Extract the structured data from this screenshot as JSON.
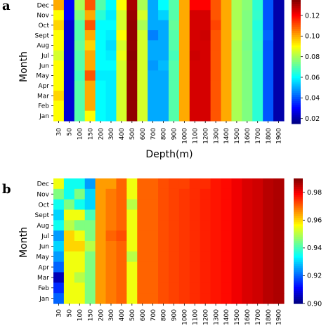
{
  "chart_data": [
    {
      "type": "heatmap",
      "panel_label": "a",
      "ylabel": "Month",
      "xlabel": "Depth(m)",
      "x_categories": [
        "30",
        "50",
        "100",
        "150",
        "200",
        "300",
        "400",
        "500",
        "600",
        "700",
        "800",
        "900",
        "1000",
        "1100",
        "1200",
        "1300",
        "1400",
        "1500",
        "1600",
        "1700",
        "1800",
        "1900"
      ],
      "y_categories": [
        "Dec",
        "Nov",
        "Oct",
        "Sept",
        "Aug",
        "Jul",
        "Jun",
        "May",
        "Apr",
        "Mar",
        "Feb",
        "Jan"
      ],
      "colorscale": "jet",
      "zlim": [
        0.015,
        0.135
      ],
      "colorbar_ticks": [
        "0.12",
        "0.10",
        "0.08",
        "0.06",
        "0.04",
        "0.02"
      ],
      "colorbar_tick_values": [
        0.12,
        0.1,
        0.08,
        0.06,
        0.04,
        0.02
      ],
      "column_profile": [
        0.09,
        0.025,
        0.07,
        0.1,
        0.06,
        0.058,
        0.085,
        0.133,
        0.085,
        0.05,
        0.05,
        0.07,
        0.1,
        0.125,
        0.125,
        0.11,
        0.1,
        0.08,
        0.075,
        0.065,
        0.04,
        0.02
      ],
      "values": [
        [
          0.1,
          0.03,
          0.08,
          0.11,
          0.07,
          0.06,
          0.09,
          0.13,
          0.08,
          0.05,
          0.06,
          0.07,
          0.1,
          0.12,
          0.12,
          0.11,
          0.1,
          0.08,
          0.076,
          0.065,
          0.04,
          0.02
        ],
        [
          0.09,
          0.03,
          0.075,
          0.1,
          0.065,
          0.058,
          0.085,
          0.132,
          0.085,
          0.05,
          0.055,
          0.07,
          0.1,
          0.125,
          0.125,
          0.11,
          0.1,
          0.08,
          0.075,
          0.066,
          0.04,
          0.02
        ],
        [
          0.095,
          0.025,
          0.07,
          0.11,
          0.06,
          0.06,
          0.085,
          0.133,
          0.08,
          0.05,
          0.05,
          0.072,
          0.1,
          0.125,
          0.125,
          0.112,
          0.1,
          0.08,
          0.075,
          0.064,
          0.04,
          0.02
        ],
        [
          0.09,
          0.025,
          0.07,
          0.1,
          0.06,
          0.058,
          0.09,
          0.133,
          0.085,
          0.045,
          0.05,
          0.07,
          0.1,
          0.125,
          0.126,
          0.11,
          0.1,
          0.082,
          0.075,
          0.065,
          0.042,
          0.02
        ],
        [
          0.09,
          0.025,
          0.072,
          0.095,
          0.06,
          0.056,
          0.085,
          0.133,
          0.085,
          0.05,
          0.05,
          0.07,
          0.1,
          0.125,
          0.125,
          0.11,
          0.1,
          0.08,
          0.074,
          0.066,
          0.04,
          0.02
        ],
        [
          0.085,
          0.025,
          0.07,
          0.1,
          0.06,
          0.058,
          0.088,
          0.134,
          0.085,
          0.05,
          0.05,
          0.068,
          0.1,
          0.126,
          0.125,
          0.11,
          0.1,
          0.08,
          0.075,
          0.065,
          0.04,
          0.02
        ],
        [
          0.09,
          0.025,
          0.07,
          0.1,
          0.06,
          0.06,
          0.085,
          0.133,
          0.085,
          0.048,
          0.052,
          0.07,
          0.1,
          0.125,
          0.125,
          0.11,
          0.1,
          0.08,
          0.075,
          0.065,
          0.04,
          0.02
        ],
        [
          0.09,
          0.025,
          0.068,
          0.11,
          0.058,
          0.058,
          0.085,
          0.133,
          0.085,
          0.05,
          0.05,
          0.07,
          0.1,
          0.125,
          0.125,
          0.11,
          0.1,
          0.08,
          0.075,
          0.065,
          0.04,
          0.02
        ],
        [
          0.09,
          0.025,
          0.07,
          0.1,
          0.06,
          0.058,
          0.085,
          0.133,
          0.085,
          0.05,
          0.05,
          0.07,
          0.1,
          0.125,
          0.125,
          0.11,
          0.1,
          0.08,
          0.075,
          0.065,
          0.04,
          0.02
        ],
        [
          0.095,
          0.025,
          0.07,
          0.1,
          0.06,
          0.058,
          0.085,
          0.133,
          0.085,
          0.05,
          0.05,
          0.07,
          0.1,
          0.125,
          0.125,
          0.11,
          0.1,
          0.08,
          0.075,
          0.065,
          0.04,
          0.02
        ],
        [
          0.09,
          0.025,
          0.07,
          0.1,
          0.06,
          0.058,
          0.085,
          0.133,
          0.085,
          0.05,
          0.05,
          0.07,
          0.1,
          0.125,
          0.125,
          0.11,
          0.1,
          0.08,
          0.075,
          0.065,
          0.04,
          0.02
        ],
        [
          0.09,
          0.025,
          0.07,
          0.09,
          0.06,
          0.058,
          0.085,
          0.133,
          0.085,
          0.05,
          0.05,
          0.07,
          0.1,
          0.125,
          0.125,
          0.11,
          0.1,
          0.08,
          0.075,
          0.065,
          0.04,
          0.02
        ]
      ]
    },
    {
      "type": "heatmap",
      "panel_label": "b",
      "ylabel": "Month",
      "xlabel": "Depth(m)",
      "x_categories": [
        "30",
        "50",
        "100",
        "150",
        "200",
        "300",
        "400",
        "500",
        "600",
        "700",
        "800",
        "900",
        "1000",
        "1100",
        "1200",
        "1300",
        "1400",
        "1500",
        "1600",
        "1700",
        "1800",
        "1900"
      ],
      "y_categories": [
        "Dec",
        "Nov",
        "Oct",
        "Sept",
        "Aug",
        "Jul",
        "Jun",
        "May",
        "Apr",
        "Mar",
        "Feb",
        "Jan"
      ],
      "colorscale": "jet",
      "zlim": [
        0.9,
        0.99
      ],
      "colorbar_ticks": [
        "0.98",
        "0.96",
        "0.94",
        "0.92",
        "0.90"
      ],
      "colorbar_tick_values": [
        0.98,
        0.96,
        0.94,
        0.92,
        0.9
      ],
      "values": [
        [
          0.955,
          0.935,
          0.935,
          0.925,
          0.965,
          0.965,
          0.97,
          0.955,
          0.97,
          0.97,
          0.972,
          0.973,
          0.973,
          0.975,
          0.975,
          0.977,
          0.978,
          0.98,
          0.982,
          0.983,
          0.985,
          0.986
        ],
        [
          0.945,
          0.935,
          0.945,
          0.93,
          0.965,
          0.968,
          0.97,
          0.955,
          0.97,
          0.97,
          0.972,
          0.973,
          0.974,
          0.975,
          0.976,
          0.977,
          0.978,
          0.98,
          0.982,
          0.983,
          0.985,
          0.986
        ],
        [
          0.935,
          0.945,
          0.935,
          0.93,
          0.965,
          0.968,
          0.97,
          0.95,
          0.97,
          0.97,
          0.972,
          0.973,
          0.974,
          0.975,
          0.976,
          0.977,
          0.978,
          0.98,
          0.982,
          0.983,
          0.985,
          0.986
        ],
        [
          0.93,
          0.955,
          0.955,
          0.94,
          0.965,
          0.968,
          0.97,
          0.955,
          0.97,
          0.97,
          0.972,
          0.973,
          0.974,
          0.975,
          0.976,
          0.977,
          0.978,
          0.98,
          0.982,
          0.983,
          0.985,
          0.986
        ],
        [
          0.935,
          0.95,
          0.945,
          0.945,
          0.965,
          0.968,
          0.97,
          0.955,
          0.97,
          0.97,
          0.972,
          0.973,
          0.974,
          0.975,
          0.976,
          0.977,
          0.978,
          0.98,
          0.982,
          0.983,
          0.985,
          0.986
        ],
        [
          0.925,
          0.96,
          0.955,
          0.945,
          0.965,
          0.97,
          0.972,
          0.955,
          0.97,
          0.97,
          0.972,
          0.973,
          0.974,
          0.975,
          0.976,
          0.977,
          0.978,
          0.98,
          0.982,
          0.983,
          0.985,
          0.986
        ],
        [
          0.93,
          0.96,
          0.96,
          0.95,
          0.965,
          0.968,
          0.97,
          0.955,
          0.97,
          0.97,
          0.972,
          0.973,
          0.974,
          0.975,
          0.976,
          0.977,
          0.978,
          0.98,
          0.982,
          0.983,
          0.985,
          0.986
        ],
        [
          0.925,
          0.955,
          0.955,
          0.945,
          0.965,
          0.968,
          0.97,
          0.95,
          0.97,
          0.97,
          0.972,
          0.973,
          0.974,
          0.975,
          0.976,
          0.977,
          0.978,
          0.98,
          0.982,
          0.983,
          0.985,
          0.986
        ],
        [
          0.92,
          0.955,
          0.955,
          0.945,
          0.965,
          0.968,
          0.97,
          0.955,
          0.97,
          0.97,
          0.972,
          0.973,
          0.974,
          0.975,
          0.976,
          0.977,
          0.978,
          0.98,
          0.982,
          0.983,
          0.985,
          0.986
        ],
        [
          0.905,
          0.955,
          0.95,
          0.945,
          0.965,
          0.968,
          0.97,
          0.955,
          0.97,
          0.97,
          0.972,
          0.973,
          0.974,
          0.975,
          0.976,
          0.977,
          0.978,
          0.98,
          0.982,
          0.983,
          0.985,
          0.986
        ],
        [
          0.915,
          0.955,
          0.955,
          0.945,
          0.965,
          0.968,
          0.97,
          0.955,
          0.97,
          0.97,
          0.972,
          0.973,
          0.974,
          0.975,
          0.976,
          0.977,
          0.978,
          0.98,
          0.982,
          0.983,
          0.985,
          0.986
        ],
        [
          0.92,
          0.955,
          0.955,
          0.945,
          0.965,
          0.968,
          0.97,
          0.955,
          0.97,
          0.97,
          0.972,
          0.973,
          0.974,
          0.975,
          0.976,
          0.977,
          0.978,
          0.98,
          0.982,
          0.983,
          0.985,
          0.986
        ]
      ]
    }
  ]
}
